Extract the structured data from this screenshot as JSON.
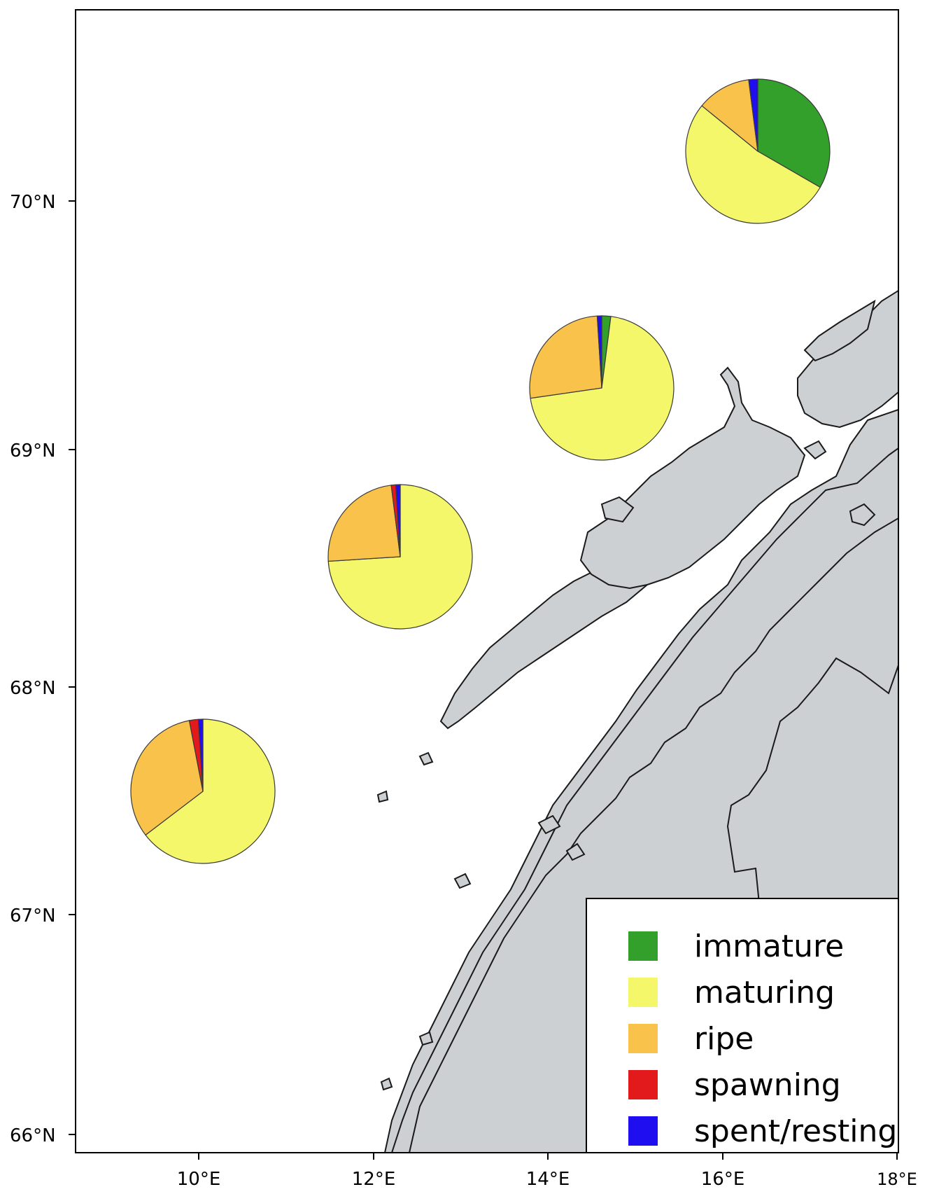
{
  "map": {
    "lat_labels": [
      "70°N",
      "69°N",
      "68°N",
      "67°N",
      "66°N"
    ],
    "lon_labels": [
      "10°E",
      "12°E",
      "14°E",
      "16°E",
      "18°E"
    ],
    "colors": {
      "ocean": "#ffffff",
      "land": "#cdd0d3",
      "coast": "#1a1a1a"
    }
  },
  "legend": {
    "items": [
      {
        "label": "immature",
        "color": "#33a02c"
      },
      {
        "label": "maturing",
        "color": "#f5f76a"
      },
      {
        "label": "ripe",
        "color": "#f9c24a"
      },
      {
        "label": "spawning",
        "color": "#e31a1c"
      },
      {
        "label": "spent/resting",
        "color": "#1f0ff0"
      }
    ]
  },
  "chart_data": {
    "type": "pie",
    "categories": [
      "immature",
      "maturing",
      "ripe",
      "spawning",
      "spent/resting"
    ],
    "pies": [
      {
        "values": [
          0.33,
          0.52,
          0.12,
          0.0,
          0.02
        ]
      },
      {
        "values": [
          0.02,
          0.7,
          0.26,
          0.0,
          0.01
        ]
      },
      {
        "values": [
          0.0,
          0.74,
          0.24,
          0.01,
          0.01
        ]
      },
      {
        "values": [
          0.0,
          0.64,
          0.32,
          0.02,
          0.01
        ]
      }
    ]
  }
}
